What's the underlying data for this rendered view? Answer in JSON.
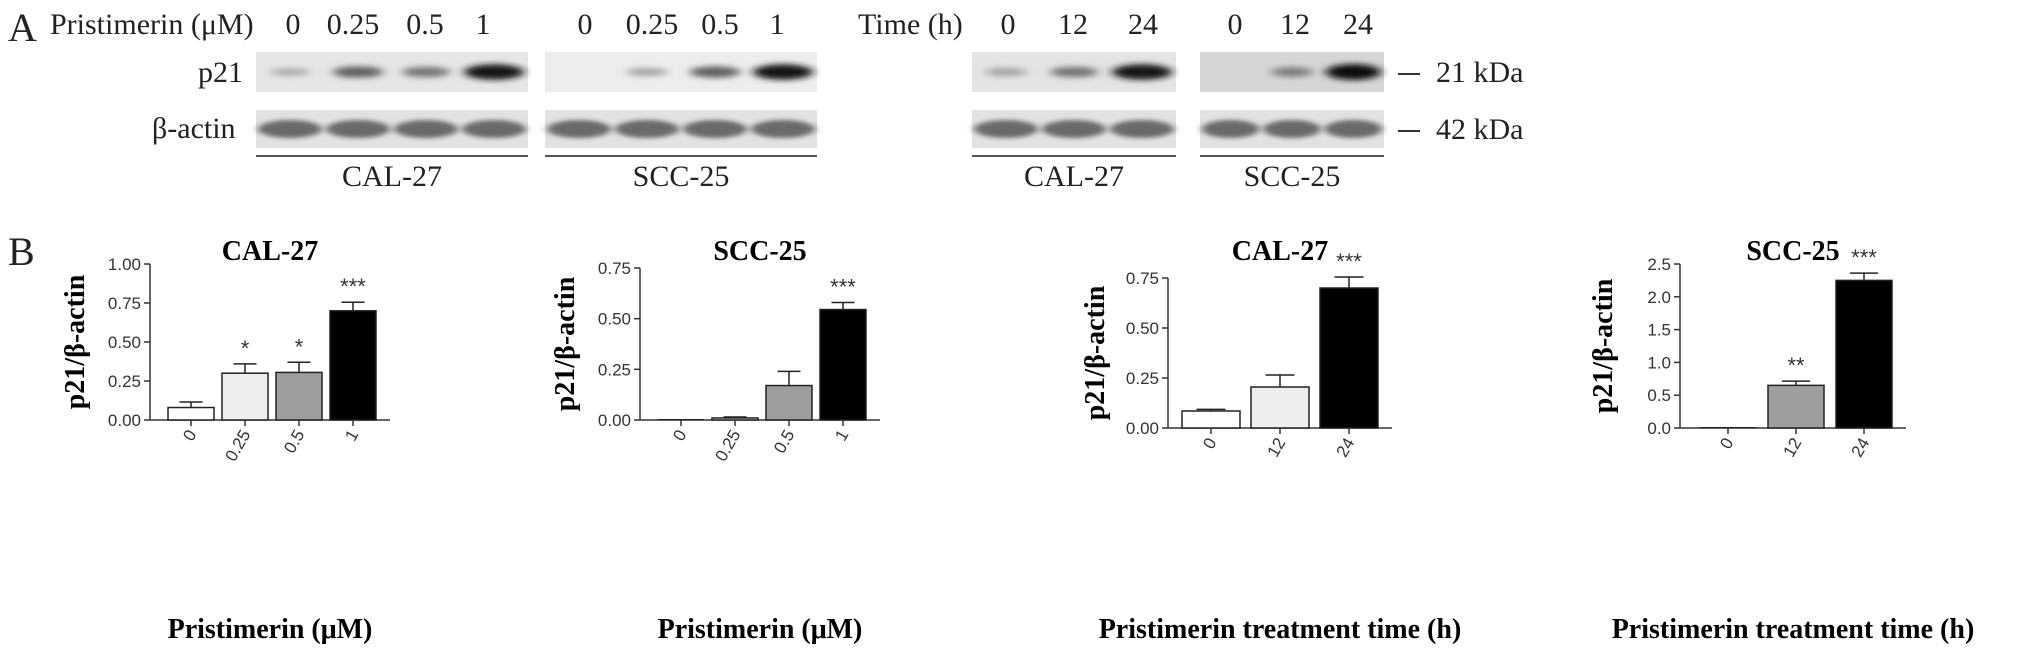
{
  "panel_a": {
    "letter": "A",
    "dose_header": "Pristimerin (μM)",
    "time_header": "Time (h)",
    "dose_conditions": [
      "0",
      "0.25",
      "0.5",
      "1"
    ],
    "time_conditions": [
      "0",
      "12",
      "24"
    ],
    "row_labels": [
      "p21",
      "β-actin"
    ],
    "kda_labels": [
      "21 kDa",
      "42 kDa"
    ],
    "cell_lines": [
      "CAL-27",
      "SCC-25",
      "CAL-27",
      "SCC-25"
    ],
    "p21_intensity": {
      "dose_cal27": [
        0.15,
        0.55,
        0.45,
        0.95
      ],
      "dose_scc25": [
        0.0,
        0.2,
        0.55,
        0.95
      ],
      "time_cal27": [
        0.2,
        0.45,
        0.95
      ],
      "time_scc25": [
        0.0,
        0.4,
        1.0
      ]
    }
  },
  "panel_b": {
    "letter": "B"
  },
  "chart_data": [
    {
      "type": "bar",
      "title": "CAL-27",
      "xlabel": "Pristimerin (μM)",
      "ylabel": "p21/β-actin",
      "categories": [
        "0",
        "0.25",
        "0.5",
        "1"
      ],
      "values": [
        0.08,
        0.3,
        0.305,
        0.7
      ],
      "errors": [
        0.035,
        0.06,
        0.065,
        0.055
      ],
      "significance": [
        "",
        "*",
        "*",
        "***"
      ],
      "bar_colors": [
        "#ffffff",
        "#eeeeee",
        "#9e9e9e",
        "#000000"
      ],
      "ylim": [
        0,
        1.0
      ],
      "yticks": [
        "0.00",
        "0.25",
        "0.50",
        "0.75",
        "1.00"
      ],
      "ytick_values": [
        0,
        0.25,
        0.5,
        0.75,
        1.0
      ]
    },
    {
      "type": "bar",
      "title": "SCC-25",
      "xlabel": "Pristimerin (μM)",
      "ylabel": "p21/β-actin",
      "categories": [
        "0",
        "0.25",
        "0.5",
        "1"
      ],
      "values": [
        0.0,
        0.01,
        0.17,
        0.545
      ],
      "errors": [
        0.0,
        0.005,
        0.07,
        0.035
      ],
      "significance": [
        "",
        "",
        "",
        "***"
      ],
      "bar_colors": [
        "#ffffff",
        "#eeeeee",
        "#9e9e9e",
        "#000000"
      ],
      "ylim": [
        0,
        0.75
      ],
      "yticks": [
        "0.00",
        "0.25",
        "0.50",
        "0.75"
      ],
      "ytick_values": [
        0,
        0.25,
        0.5,
        0.75
      ]
    },
    {
      "type": "bar",
      "title": "CAL-27",
      "xlabel": "Pristimerin treatment time (h)",
      "ylabel": "p21/β-actin",
      "categories": [
        "0",
        "12",
        "24"
      ],
      "values": [
        0.085,
        0.205,
        0.7
      ],
      "errors": [
        0.008,
        0.06,
        0.055
      ],
      "significance": [
        "",
        "",
        "***"
      ],
      "bar_colors": [
        "#ffffff",
        "#eeeeee",
        "#000000"
      ],
      "ylim": [
        0,
        0.75
      ],
      "yticks": [
        "0.00",
        "0.25",
        "0.50",
        "0.75"
      ],
      "ytick_values": [
        0,
        0.25,
        0.5,
        0.75
      ]
    },
    {
      "type": "bar",
      "title": "SCC-25",
      "xlabel": "Pristimerin treatment time (h)",
      "ylabel": "p21/β-actin",
      "categories": [
        "0",
        "12",
        "24"
      ],
      "values": [
        0.0,
        0.65,
        2.25
      ],
      "errors": [
        0.0,
        0.065,
        0.11
      ],
      "significance": [
        "",
        "**",
        "***"
      ],
      "bar_colors": [
        "#ffffff",
        "#9e9e9e",
        "#000000"
      ],
      "ylim": [
        0,
        2.5
      ],
      "yticks": [
        "0.0",
        "0.5",
        "1.0",
        "1.5",
        "2.0",
        "2.5"
      ],
      "ytick_values": [
        0,
        0.5,
        1.0,
        1.5,
        2.0,
        2.5
      ]
    }
  ]
}
